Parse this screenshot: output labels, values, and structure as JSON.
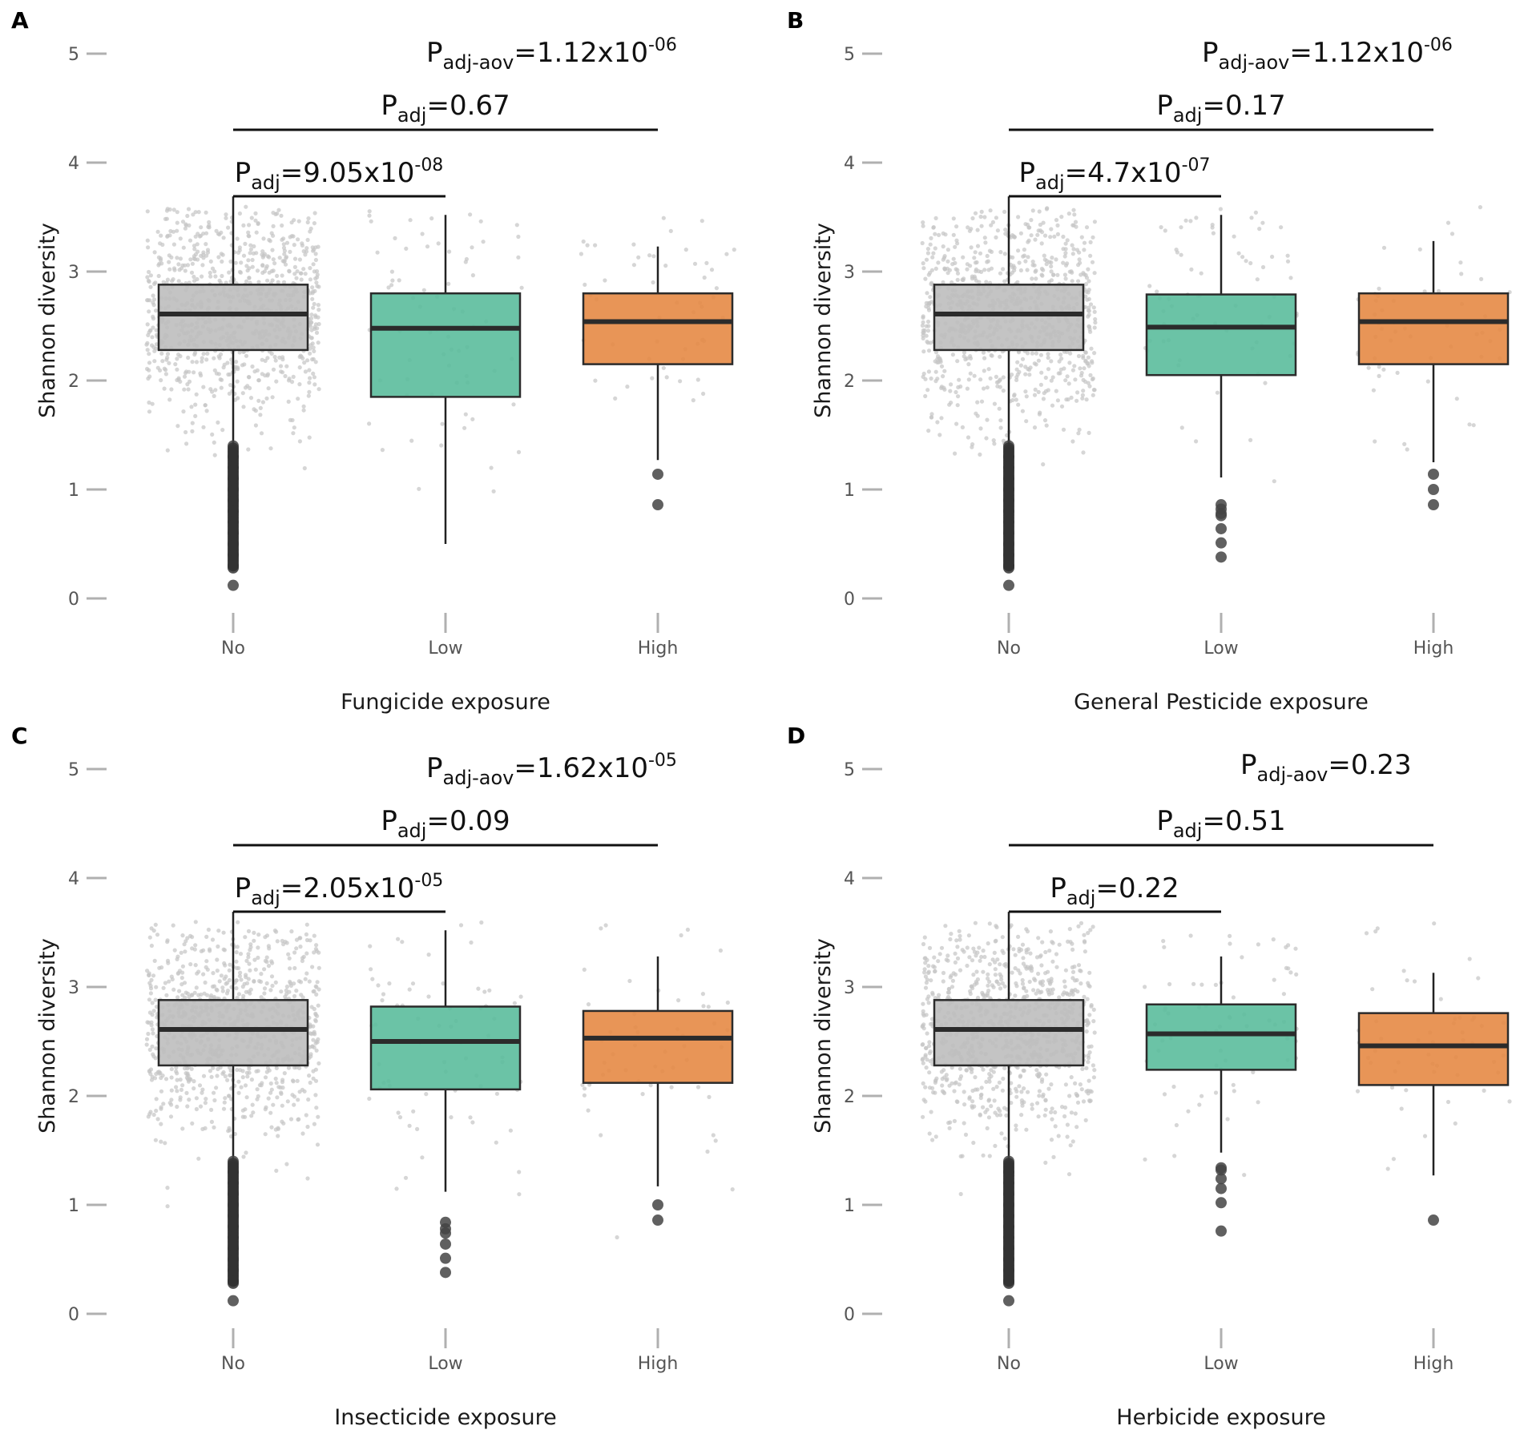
{
  "chart_data": [
    {
      "type": "box",
      "panel": "A",
      "xlabel": "Fungicide exposure",
      "ylabel": "Shannon diversity",
      "ylim": [
        0,
        5
      ],
      "yticks": [
        "0",
        "1",
        "2",
        "3",
        "4",
        "5"
      ],
      "categories": [
        "No",
        "Low",
        "High"
      ],
      "colors": [
        "#bebebe",
        "#5bbc9c",
        "#e58a45"
      ],
      "boxes": [
        {
          "category": "No",
          "q1": 2.28,
          "median": 2.61,
          "q3": 2.88,
          "whisker_low": 1.41,
          "whisker_high": 3.69,
          "outliers": [
            1.4,
            1.3,
            1.2,
            1.1,
            1.0,
            0.9,
            0.8,
            0.7,
            0.6,
            0.5,
            0.4,
            0.3,
            0.12
          ]
        },
        {
          "category": "Low",
          "q1": 1.85,
          "median": 2.48,
          "q3": 2.8,
          "whisker_low": 0.5,
          "whisker_high": 3.52,
          "outliers": []
        },
        {
          "category": "High",
          "q1": 2.15,
          "median": 2.54,
          "q3": 2.8,
          "whisker_low": 1.27,
          "whisker_high": 3.23,
          "outliers": [
            1.14,
            0.86
          ]
        }
      ],
      "annotations": {
        "aov": {
          "base": "P",
          "sub": "adj-aov",
          "text": "=1.12x10",
          "sup": "-06"
        },
        "high": {
          "base": "P",
          "sub": "adj",
          "text": "=0.67",
          "sup": ""
        },
        "low": {
          "base": "P",
          "sub": "adj",
          "text": "=9.05x10",
          "sup": "-08"
        }
      }
    },
    {
      "type": "box",
      "panel": "B",
      "xlabel": "General Pesticide exposure",
      "ylabel": "Shannon diversity",
      "ylim": [
        0,
        5
      ],
      "yticks": [
        "0",
        "1",
        "2",
        "3",
        "4",
        "5"
      ],
      "categories": [
        "No",
        "Low",
        "High"
      ],
      "colors": [
        "#bebebe",
        "#5bbc9c",
        "#e58a45"
      ],
      "boxes": [
        {
          "category": "No",
          "q1": 2.28,
          "median": 2.61,
          "q3": 2.88,
          "whisker_low": 1.41,
          "whisker_high": 3.69,
          "outliers": [
            1.4,
            1.3,
            1.2,
            1.1,
            1.0,
            0.9,
            0.8,
            0.7,
            0.6,
            0.5,
            0.4,
            0.3,
            0.12
          ]
        },
        {
          "category": "Low",
          "q1": 2.05,
          "median": 2.49,
          "q3": 2.79,
          "whisker_low": 1.11,
          "whisker_high": 3.52,
          "outliers": [
            0.86,
            0.82,
            0.78,
            0.76,
            0.64,
            0.51,
            0.38
          ]
        },
        {
          "category": "High",
          "q1": 2.15,
          "median": 2.54,
          "q3": 2.8,
          "whisker_low": 1.25,
          "whisker_high": 3.28,
          "outliers": [
            1.14,
            1.0,
            0.86
          ]
        }
      ],
      "annotations": {
        "aov": {
          "base": "P",
          "sub": "adj-aov",
          "text": "=1.12x10",
          "sup": "-06"
        },
        "high": {
          "base": "P",
          "sub": "adj",
          "text": "=0.17",
          "sup": ""
        },
        "low": {
          "base": "P",
          "sub": "adj",
          "text": "=4.7x10",
          "sup": "-07"
        }
      }
    },
    {
      "type": "box",
      "panel": "C",
      "xlabel": "Insecticide exposure",
      "ylabel": "Shannon diversity",
      "ylim": [
        0,
        5
      ],
      "yticks": [
        "0",
        "1",
        "2",
        "3",
        "4",
        "5"
      ],
      "categories": [
        "No",
        "Low",
        "High"
      ],
      "colors": [
        "#bebebe",
        "#5bbc9c",
        "#e58a45"
      ],
      "boxes": [
        {
          "category": "No",
          "q1": 2.28,
          "median": 2.61,
          "q3": 2.88,
          "whisker_low": 1.41,
          "whisker_high": 3.69,
          "outliers": [
            1.4,
            1.3,
            1.2,
            1.1,
            1.0,
            0.9,
            0.8,
            0.7,
            0.6,
            0.5,
            0.4,
            0.3,
            0.12
          ]
        },
        {
          "category": "Low",
          "q1": 2.06,
          "median": 2.5,
          "q3": 2.82,
          "whisker_low": 1.12,
          "whisker_high": 3.52,
          "outliers": [
            0.84,
            0.78,
            0.74,
            0.64,
            0.51,
            0.38
          ]
        },
        {
          "category": "High",
          "q1": 2.12,
          "median": 2.53,
          "q3": 2.78,
          "whisker_low": 1.17,
          "whisker_high": 3.28,
          "outliers": [
            1.0,
            0.86
          ]
        }
      ],
      "annotations": {
        "aov": {
          "base": "P",
          "sub": "adj-aov",
          "text": "=1.62x10",
          "sup": "-05"
        },
        "high": {
          "base": "P",
          "sub": "adj",
          "text": "=0.09",
          "sup": ""
        },
        "low": {
          "base": "P",
          "sub": "adj",
          "text": "=2.05x10",
          "sup": "-05"
        }
      }
    },
    {
      "type": "box",
      "panel": "D",
      "xlabel": "Herbicide exposure",
      "ylabel": "Shannon diversity",
      "ylim": [
        0,
        5
      ],
      "yticks": [
        "0",
        "1",
        "2",
        "3",
        "4",
        "5"
      ],
      "categories": [
        "No",
        "Low",
        "High"
      ],
      "colors": [
        "#bebebe",
        "#5bbc9c",
        "#e58a45"
      ],
      "boxes": [
        {
          "category": "No",
          "q1": 2.28,
          "median": 2.61,
          "q3": 2.88,
          "whisker_low": 1.41,
          "whisker_high": 3.69,
          "outliers": [
            1.4,
            1.3,
            1.2,
            1.1,
            1.0,
            0.9,
            0.8,
            0.7,
            0.6,
            0.5,
            0.4,
            0.3,
            0.12
          ]
        },
        {
          "category": "Low",
          "q1": 2.24,
          "median": 2.57,
          "q3": 2.84,
          "whisker_low": 1.48,
          "whisker_high": 3.28,
          "outliers": [
            1.34,
            1.32,
            1.24,
            1.15,
            1.02,
            0.76
          ]
        },
        {
          "category": "High",
          "q1": 2.1,
          "median": 2.46,
          "q3": 2.76,
          "whisker_low": 1.27,
          "whisker_high": 3.13,
          "outliers": [
            0.86
          ]
        }
      ],
      "annotations": {
        "aov": {
          "base": "P",
          "sub": "adj-aov",
          "text": "=0.23",
          "sup": ""
        },
        "high": {
          "base": "P",
          "sub": "adj",
          "text": "=0.51",
          "sup": ""
        },
        "low": {
          "base": "P",
          "sub": "adj",
          "text": "=0.22",
          "sup": ""
        }
      }
    }
  ]
}
